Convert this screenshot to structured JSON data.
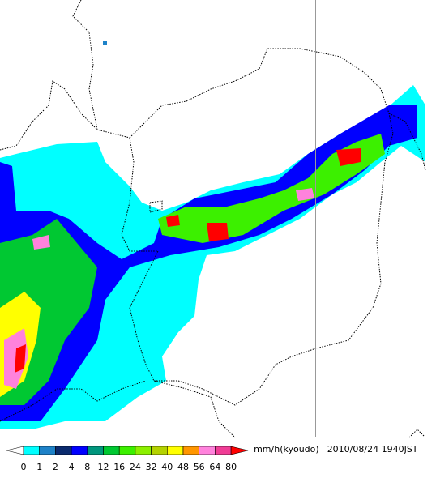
{
  "legend": {
    "colors": [
      "#ffffff",
      "#00ffff",
      "#1e82c8",
      "#0a2a6e",
      "#0000ff",
      "#00967d",
      "#00c832",
      "#3cf000",
      "#8cf000",
      "#b4d200",
      "#ffff00",
      "#ff9600",
      "#ff82dc",
      "#f03c96",
      "#ff0000"
    ],
    "ticks": [
      0,
      1,
      2,
      4,
      8,
      12,
      16,
      24,
      32,
      40,
      48,
      56,
      64,
      80
    ],
    "unit": "mm/h(kyoudo)",
    "timestamp": "2010/08/24 1940JST"
  }
}
